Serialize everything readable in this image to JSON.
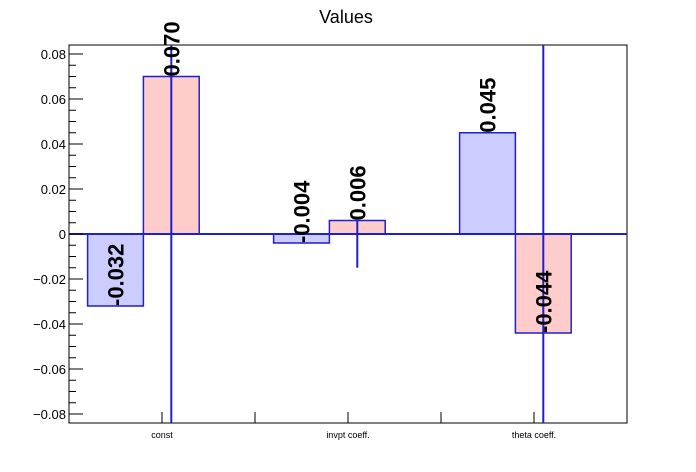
{
  "chart_data": {
    "type": "bar",
    "title": "Values",
    "xlabel": "",
    "ylabel": "",
    "categories": [
      "const",
      "invpt coeff.",
      "theta coeff."
    ],
    "ylim": [
      -0.084,
      0.084
    ],
    "yticks": [
      -0.08,
      -0.06,
      -0.04,
      -0.02,
      0,
      0.02,
      0.04,
      0.06,
      0.08
    ],
    "ytick_labels": [
      "−0.08",
      "−0.06",
      "−0.04",
      "−0.02",
      "0",
      "0.02",
      "0.04",
      "0.06",
      "0.08"
    ],
    "grid": false,
    "legend": "none",
    "series": [
      {
        "fill": "#ccccff",
        "stroke": "#1f1fcc",
        "values": [
          -0.032,
          -0.004,
          0.045
        ],
        "labels": [
          "-0.032",
          "-0.004",
          "0.045"
        ]
      },
      {
        "fill": "#ffcccc",
        "stroke": "#1f1fcc",
        "values": [
          0.07,
          0.006,
          -0.044
        ],
        "labels": [
          "0.070",
          "0.006",
          "-0.044"
        ],
        "error_low": [
          -0.084,
          -0.015,
          -0.084
        ],
        "error_high": [
          0.084,
          0.006,
          0.084
        ]
      }
    ],
    "zero_line_color": "#1f1fcc"
  }
}
